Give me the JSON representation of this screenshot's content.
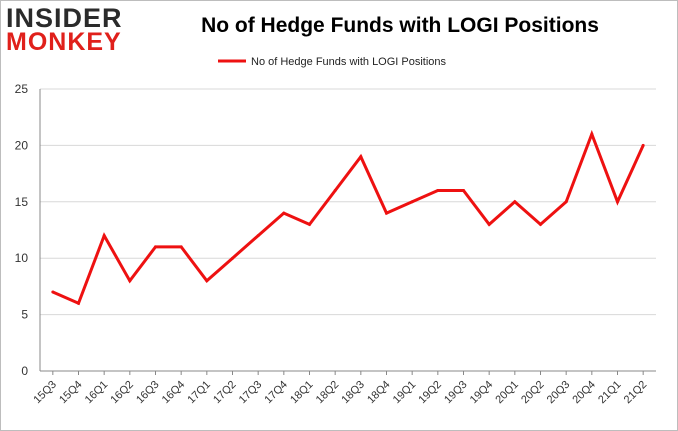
{
  "title": "No of Hedge Funds with LOGI Positions",
  "logo": {
    "line1": "INSIDER",
    "line2": "MONKEY"
  },
  "colors": {
    "line": "#ee1111",
    "grid": "#d8d8d8",
    "axis": "#888888"
  },
  "chart_data": {
    "type": "line",
    "title": "No of Hedge Funds with LOGI Positions",
    "xlabel": "",
    "ylabel": "",
    "ylim": [
      0,
      25
    ],
    "yticks": [
      0,
      5,
      10,
      15,
      20,
      25
    ],
    "grid": true,
    "legend_position": "top-center",
    "categories": [
      "15Q3",
      "15Q4",
      "16Q1",
      "16Q2",
      "16Q3",
      "16Q4",
      "17Q1",
      "17Q2",
      "17Q3",
      "17Q4",
      "18Q1",
      "18Q2",
      "18Q3",
      "18Q4",
      "19Q1",
      "19Q2",
      "19Q3",
      "19Q4",
      "20Q1",
      "20Q2",
      "20Q3",
      "20Q4",
      "21Q1",
      "21Q2"
    ],
    "series": [
      {
        "name": "No of Hedge Funds with LOGI Positions",
        "values": [
          7,
          6,
          12,
          8,
          11,
          11,
          8,
          10,
          12,
          14,
          13,
          16,
          19,
          14,
          15,
          16,
          16,
          13,
          15,
          13,
          15,
          21,
          15,
          20
        ]
      }
    ]
  }
}
